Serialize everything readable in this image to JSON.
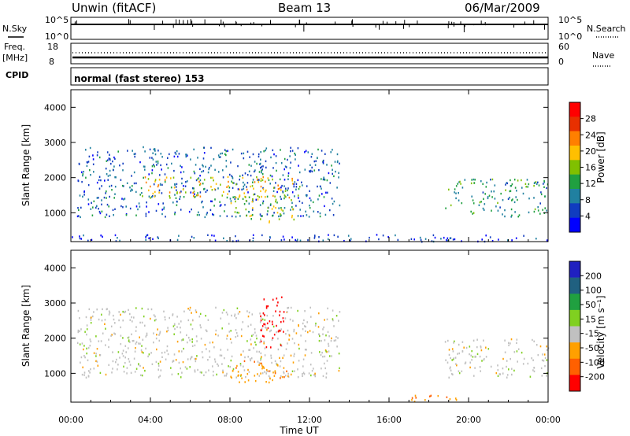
{
  "header": {
    "station": "Unwin (fitACF)",
    "beam": "Beam 13",
    "date": "06/Mar/2009"
  },
  "noise_panel": {
    "left_label": "N.Sky",
    "left_ticks": [
      "10^5",
      "10^0"
    ],
    "right_ticks": [
      "10^5",
      "10^0"
    ],
    "right_label": "N.Search"
  },
  "freq_panel": {
    "left_label_top": "Freq.",
    "left_label_unit": "[MHz]",
    "left_ticks": [
      "18",
      "8"
    ],
    "right_ticks": [
      "60",
      "0"
    ],
    "right_label": "Nave"
  },
  "cpid_panel": {
    "left_label": "CPID",
    "mode_text": "normal (fast stereo) 153"
  },
  "x_axis": {
    "label": "Time UT",
    "ticks": [
      "00:00",
      "04:00",
      "08:00",
      "12:00",
      "16:00",
      "20:00",
      "00:00"
    ]
  },
  "power_colorbar": {
    "label": "Power [dB]",
    "ticks": [
      "28",
      "24",
      "20",
      "16",
      "12",
      "8",
      "4"
    ],
    "colors": [
      "#ff0000",
      "#e83000",
      "#ff7f00",
      "#ffbf00",
      "#80c000",
      "#20a040",
      "#2080a0",
      "#103cc0",
      "#0000ff"
    ]
  },
  "velocity_colorbar": {
    "label": "Velocity [m s⁻¹]",
    "ticks": [
      "200",
      "100",
      "50",
      "15",
      "-15",
      "-50",
      "-100",
      "-200"
    ],
    "colors": [
      "#2020c0",
      "#206080",
      "#20a040",
      "#80d020",
      "#c0c0c0",
      "#ffa000",
      "#ff6000",
      "#ff0000"
    ]
  },
  "chart_data": {
    "type": "heatmap",
    "title": "Unwin (fitACF)  Beam 13  06/Mar/2009",
    "xlabel": "Time UT",
    "ylabel": "Slant Range [km]",
    "x_range_hours": [
      0,
      24
    ],
    "ylim": [
      180,
      4500
    ],
    "y_ticks": [
      1000,
      2000,
      3000,
      4000
    ],
    "panels": [
      {
        "name": "Power",
        "unit": "dB",
        "color_range": [
          0,
          30
        ],
        "regions": [
          {
            "t_start": 0.3,
            "t_end": 13.5,
            "range_km": [
              900,
              2900
            ],
            "power_db": 6
          },
          {
            "t_start": 3.5,
            "t_end": 11.5,
            "range_km": [
              1450,
              2050
            ],
            "power_db": 18
          },
          {
            "t_start": 8.0,
            "t_end": 11.2,
            "range_km": [
              750,
              1500
            ],
            "power_db": 14
          },
          {
            "t_start": 18.8,
            "t_end": 24.0,
            "range_km": [
              900,
              2000
            ],
            "power_db": 10
          },
          {
            "t_start": 0.0,
            "t_end": 24.0,
            "range_km": [
              200,
              400
            ],
            "power_db": 3
          }
        ]
      },
      {
        "name": "Velocity",
        "unit": "m s-1",
        "color_range": [
          -250,
          250
        ],
        "regions": [
          {
            "t_start": 0.3,
            "t_end": 13.5,
            "range_km": [
              900,
              2900
            ],
            "velocity": 0
          },
          {
            "t_start": 8.0,
            "t_end": 11.2,
            "range_km": [
              750,
              1400
            ],
            "velocity": -40
          },
          {
            "t_start": 9.5,
            "t_end": 10.7,
            "range_km": [
              1700,
              3300
            ],
            "velocity": -200
          },
          {
            "t_start": 18.8,
            "t_end": 24.0,
            "range_km": [
              900,
              2000
            ],
            "velocity": 0
          },
          {
            "t_start": 17.0,
            "t_end": 20.0,
            "range_km": [
              200,
              400
            ],
            "velocity": -40
          }
        ]
      }
    ]
  }
}
